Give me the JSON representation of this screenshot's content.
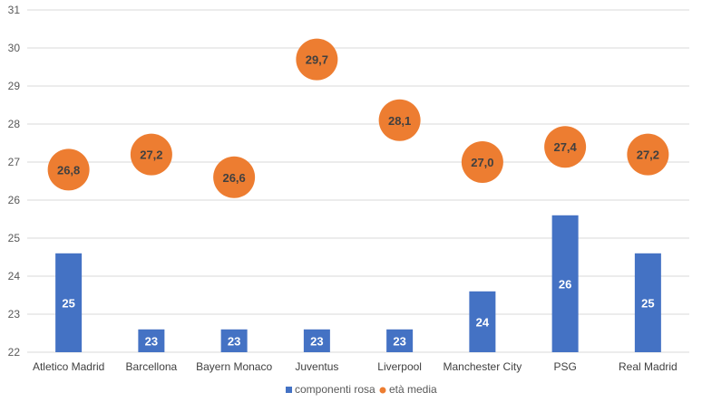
{
  "chart_data": {
    "type": "bar",
    "categories": [
      "Atletico Madrid",
      "Barcellona",
      "Bayern Monaco",
      "Juventus",
      "Liverpool",
      "Manchester City",
      "PSG",
      "Real Madrid"
    ],
    "series": [
      {
        "name": "componenti rosa",
        "kind": "bar",
        "values": [
          25,
          23,
          23,
          23,
          23,
          24,
          26,
          25
        ],
        "labels": [
          "25",
          "23",
          "23",
          "23",
          "23",
          "24",
          "26",
          "25"
        ],
        "color": "#4472C4"
      },
      {
        "name": "età media",
        "kind": "point",
        "values": [
          26.8,
          27.2,
          26.6,
          29.7,
          28.1,
          27.0,
          27.4,
          27.2
        ],
        "labels": [
          "26,8",
          "27,2",
          "26,6",
          "29,7",
          "28,1",
          "27,0",
          "27,4",
          "27,2"
        ],
        "color": "#ED7D31"
      }
    ],
    "ylim": [
      22,
      31
    ],
    "yticks": [
      "22",
      "23",
      "24",
      "25",
      "26",
      "27",
      "28",
      "29",
      "30",
      "31"
    ],
    "grid": true,
    "legend": "bottom",
    "title": "",
    "xlabel": "",
    "ylabel": ""
  }
}
